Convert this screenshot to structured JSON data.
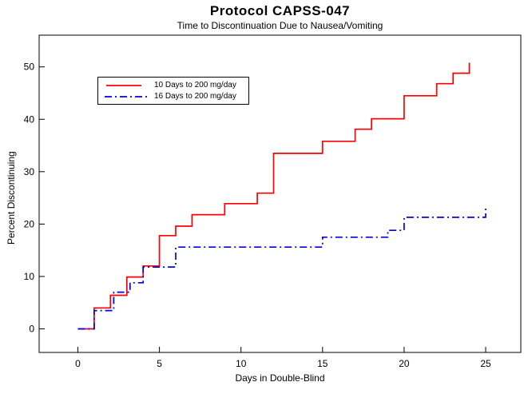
{
  "chart_data": {
    "type": "line",
    "subtype": "step",
    "title": "Protocol CAPSS-047",
    "subtitle": "Time to Discontinuation Due to Nausea/Vomiting",
    "xlabel": "Days in Double-Blind",
    "ylabel": "Percent Discontinuing",
    "xlim": [
      0,
      25
    ],
    "ylim": [
      0,
      50
    ],
    "xticks": [
      0,
      5,
      10,
      15,
      20,
      25
    ],
    "yticks": [
      0,
      10,
      20,
      30,
      40,
      50
    ],
    "grid": false,
    "frame": true,
    "legend": {
      "position": "upper-left-inside",
      "entries": [
        {
          "label": "10 Days to 200 mg/day",
          "color": "#FF0000",
          "style": "solid"
        },
        {
          "label": "16 Days to 200 mg/day",
          "color": "#0000E0",
          "style": "dash-dot"
        }
      ]
    },
    "series": [
      {
        "name": "10 Days to 200 mg/day",
        "color": "#FF0000",
        "line_style": "solid",
        "steps": [
          [
            0,
            0
          ],
          [
            1,
            4.0
          ],
          [
            2,
            6.4
          ],
          [
            3,
            9.9
          ],
          [
            4,
            12.0
          ],
          [
            5,
            17.8
          ],
          [
            6,
            19.6
          ],
          [
            7,
            21.8
          ],
          [
            9,
            23.9
          ],
          [
            11,
            25.9
          ],
          [
            12,
            33.5
          ],
          [
            15,
            35.8
          ],
          [
            17,
            38.1
          ],
          [
            18,
            40.1
          ],
          [
            20,
            44.5
          ],
          [
            22,
            46.8
          ],
          [
            23,
            48.8
          ],
          [
            24,
            50.8
          ]
        ]
      },
      {
        "name": "16 Days to 200 mg/day",
        "color": "#0000E0",
        "line_style": "dash-dot",
        "steps": [
          [
            0,
            0
          ],
          [
            1,
            3.5
          ],
          [
            2.2,
            7.0
          ],
          [
            3.2,
            8.8
          ],
          [
            4,
            11.8
          ],
          [
            6,
            15.6
          ],
          [
            15,
            17.5
          ],
          [
            19,
            18.8
          ],
          [
            20,
            21.3
          ],
          [
            25,
            23.4
          ]
        ]
      }
    ],
    "colors": {
      "background": "#FFFFFF",
      "axis": "#000000",
      "text": "#000000"
    }
  }
}
